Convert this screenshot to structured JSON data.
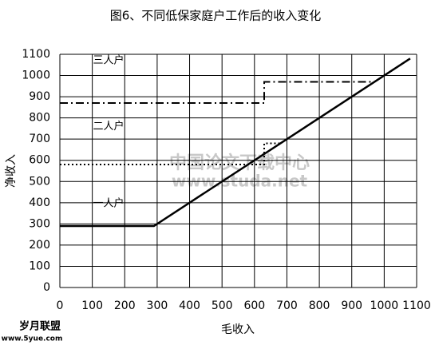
{
  "chart_data": {
    "type": "line",
    "title": "图6、不同低保家庭户工作后的收入变化",
    "x_label": "毛收入",
    "y_label": "净收入",
    "xlim": [
      0,
      1100
    ],
    "xticks": [
      0,
      100,
      200,
      300,
      400,
      500,
      600,
      700,
      800,
      900,
      1000,
      1100
    ],
    "ylim": [
      0,
      1100
    ],
    "yticks": [
      0,
      100,
      200,
      300,
      400,
      500,
      600,
      700,
      800,
      900,
      1000,
      1100
    ],
    "grid": true,
    "series": [
      {
        "name": "一人户",
        "color": "#000000",
        "style": "solid",
        "x": [
          0,
          290,
          1080
        ],
        "values": [
          290,
          290,
          1080
        ]
      },
      {
        "name": "二人户",
        "color": "#000000",
        "style": "dotted",
        "x": [
          0,
          630,
          630,
          680
        ],
        "values": [
          580,
          580,
          680,
          680
        ]
      },
      {
        "name": "三人户",
        "color": "#000000",
        "style": "dashdot",
        "x": [
          0,
          630,
          630,
          970,
          1080
        ],
        "values": [
          870,
          870,
          970,
          970,
          1080
        ]
      }
    ],
    "annotations": [
      {
        "text": "三人户",
        "x": 150,
        "y": 1070
      },
      {
        "text": "二人户",
        "x": 150,
        "y": 760
      },
      {
        "text": "一人户",
        "x": 150,
        "y": 395
      }
    ],
    "watermarks": [
      "中国论文下载中心",
      "www.studa.net",
      "岁月联盟",
      "www.5yue.com"
    ]
  }
}
